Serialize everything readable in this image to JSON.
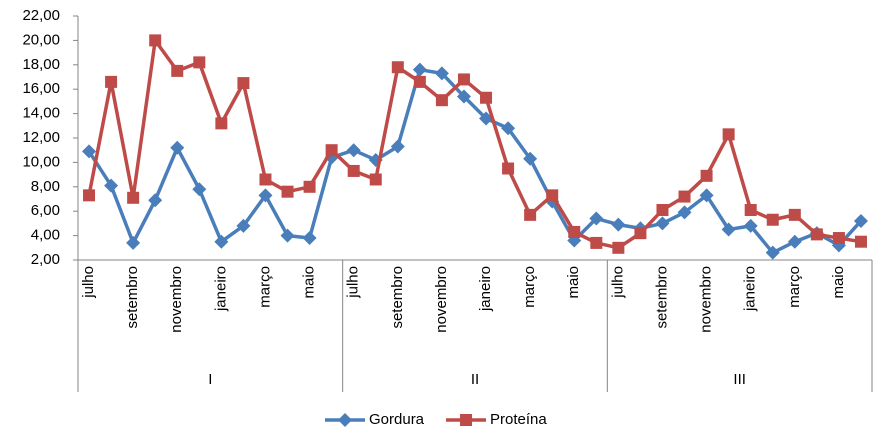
{
  "chart_data": {
    "type": "line",
    "categories": [
      "julho",
      null,
      "setembro",
      null,
      "novembro",
      null,
      "janeiro",
      null,
      "março",
      null,
      "maio",
      null,
      "julho",
      null,
      "setembro",
      null,
      "novembro",
      null,
      "janeiro",
      null,
      "março",
      null,
      "maio",
      null,
      "julho",
      null,
      "setembro",
      null,
      "novembro",
      null,
      "janeiro",
      null,
      "março",
      null,
      "maio",
      null
    ],
    "groups": [
      "I",
      "II",
      "III"
    ],
    "series": [
      {
        "name": "Gordura",
        "color": "#4a7ebb",
        "marker": "diamond",
        "values": [
          10.9,
          8.1,
          3.4,
          6.9,
          11.2,
          7.8,
          3.5,
          4.8,
          7.3,
          4.0,
          3.8,
          10.4,
          11.0,
          10.2,
          11.3,
          17.6,
          17.3,
          15.4,
          13.6,
          12.8,
          10.3,
          6.8,
          3.6,
          5.4,
          4.9,
          4.6,
          5.0,
          5.9,
          7.3,
          4.5,
          4.8,
          2.6,
          3.5,
          4.2,
          3.2,
          5.2
        ]
      },
      {
        "name": "Proteína",
        "color": "#be4b48",
        "marker": "square",
        "values": [
          7.3,
          16.6,
          7.1,
          20.0,
          17.5,
          18.2,
          13.2,
          16.5,
          8.6,
          7.6,
          8.0,
          11.0,
          9.3,
          8.6,
          17.8,
          16.6,
          15.1,
          16.8,
          15.3,
          9.5,
          5.7,
          7.3,
          4.3,
          3.4,
          3.0,
          4.2,
          6.1,
          7.2,
          8.9,
          12.3,
          6.1,
          5.3,
          5.7,
          4.1,
          3.8,
          3.5
        ]
      }
    ],
    "ylim": [
      2,
      22
    ],
    "yticks": [
      {
        "value": 2,
        "label": "2,00"
      },
      {
        "value": 4,
        "label": "4,00"
      },
      {
        "value": 6,
        "label": "6,00"
      },
      {
        "value": 8,
        "label": "8,00"
      },
      {
        "value": 10,
        "label": "10,00"
      },
      {
        "value": 12,
        "label": "12,00"
      },
      {
        "value": 14,
        "label": "14,00"
      },
      {
        "value": 16,
        "label": "16,00"
      },
      {
        "value": 18,
        "label": "18,00"
      },
      {
        "value": 20,
        "label": "20,00"
      },
      {
        "value": 22,
        "label": "22,00"
      }
    ],
    "grid": false,
    "legend": "bottom"
  }
}
